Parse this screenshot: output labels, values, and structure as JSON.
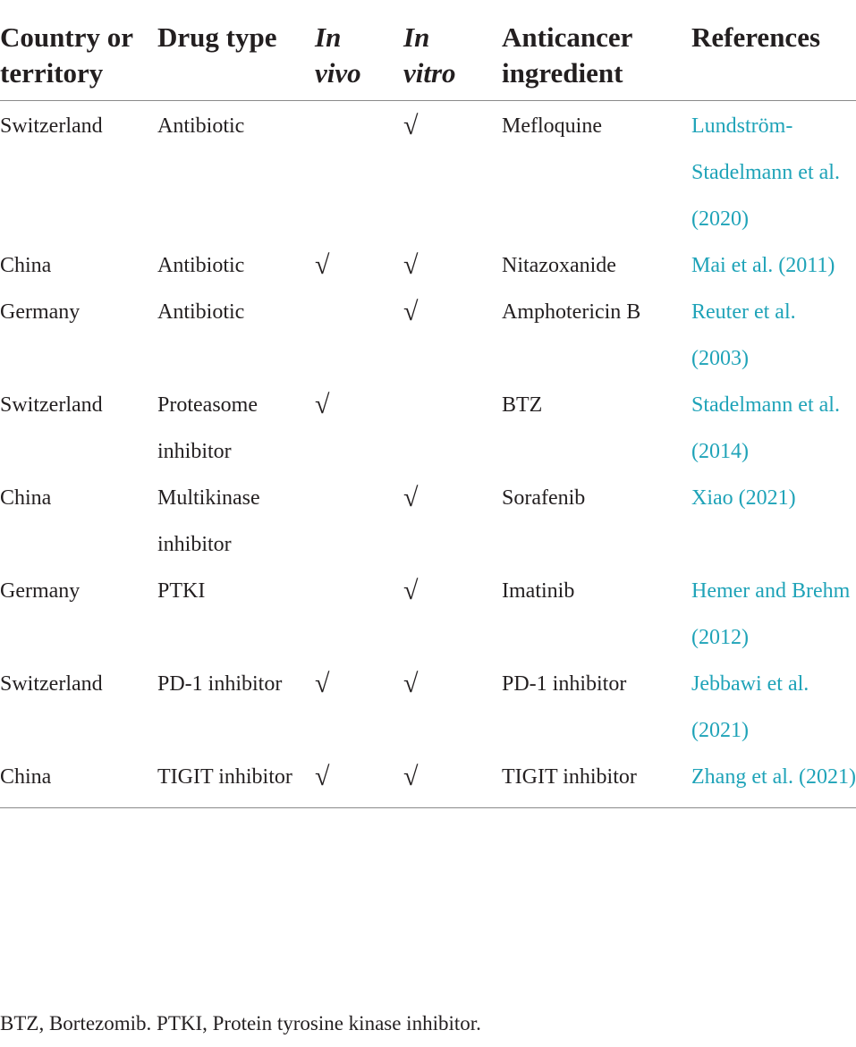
{
  "table": {
    "headers": {
      "country": "Country or territory",
      "drug_type": "Drug type",
      "in_vivo": "In vivo",
      "in_vitro": "In vitro",
      "ingredient": "Anticancer ingredient",
      "references": "References"
    },
    "rows": [
      {
        "country": "Switzerland",
        "drug_type": "Antibiotic",
        "in_vivo": "",
        "in_vitro": "√",
        "ingredient": "Mefloquine",
        "reference": "Lundström-Stadelmann et al. (2020)"
      },
      {
        "country": "China",
        "drug_type": "Antibiotic",
        "in_vivo": "√",
        "in_vitro": "√",
        "ingredient": "Nitazoxanide",
        "reference": "Mai et al. (2011)"
      },
      {
        "country": "Germany",
        "drug_type": "Antibiotic",
        "in_vivo": "",
        "in_vitro": "√",
        "ingredient": "Amphotericin B",
        "reference": "Reuter et al. (2003)"
      },
      {
        "country": "Switzerland",
        "drug_type": "Proteasome inhibitor",
        "in_vivo": "√",
        "in_vitro": "",
        "ingredient": "BTZ",
        "reference": "Stadelmann et al. (2014)"
      },
      {
        "country": "China",
        "drug_type": "Multikinase inhibitor",
        "in_vivo": "",
        "in_vitro": "√",
        "ingredient": "Sorafenib",
        "reference": "Xiao (2021)"
      },
      {
        "country": "Germany",
        "drug_type": "PTKI",
        "in_vivo": "",
        "in_vitro": "√",
        "ingredient": "Imatinib",
        "reference": "Hemer and Brehm (2012)"
      },
      {
        "country": "Switzerland",
        "drug_type": "PD-1 inhibitor",
        "in_vivo": "√",
        "in_vitro": "√",
        "ingredient": "PD-1 inhibitor",
        "reference": "Jebbawi et al. (2021)"
      },
      {
        "country": "China",
        "drug_type": "TIGIT inhibitor",
        "in_vivo": "√",
        "in_vitro": "√",
        "ingredient": "TIGIT inhibitor",
        "reference": "Zhang et al. (2021)"
      }
    ]
  },
  "footnote": "BTZ, Bortezomib. PTKI, Protein tyrosine kinase inhibitor.",
  "colors": {
    "text": "#231f20",
    "reference_link": "#1fa3b8",
    "rule": "#8a8a8a"
  }
}
